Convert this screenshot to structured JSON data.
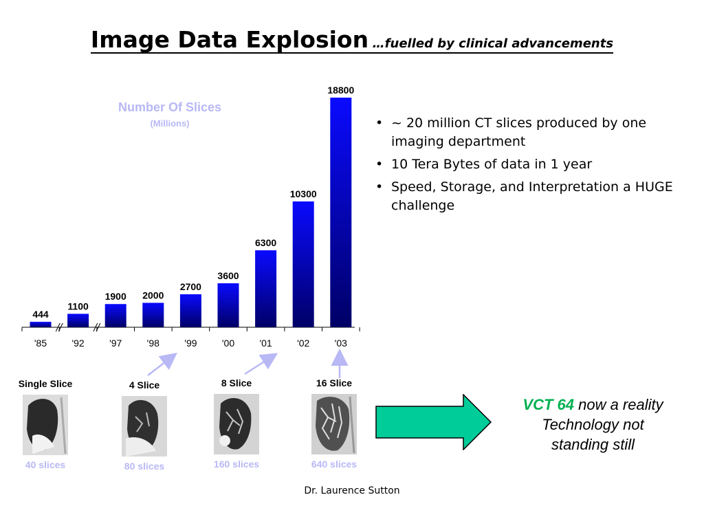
{
  "title": {
    "main": "Image Data Explosion",
    "sub": "…fuelled by clinical advancements"
  },
  "chart_data": {
    "type": "bar",
    "title": "Number Of Slices",
    "subtitle": "(Millions)",
    "categories": [
      "'85",
      "'92",
      "'97",
      "'98",
      "'99",
      "'00",
      "'01",
      "'02",
      "'03"
    ],
    "values": [
      444,
      1100,
      1900,
      2000,
      2700,
      3600,
      6300,
      10300,
      18800
    ],
    "value_labels": [
      "444",
      "1100",
      "1900",
      "2000",
      "2700",
      "3600",
      "6300",
      "10300",
      "18800"
    ],
    "ylim": [
      0,
      18800
    ],
    "axis_breaks_after": [
      0,
      1
    ],
    "grid": false,
    "bar_color_top": "#0a0aff",
    "bar_color_bottom": "#000066",
    "title_color": "#b8b8f5"
  },
  "bullets": [
    "~ 20 million CT slices produced by one imaging department",
    "10 Tera Bytes of data in 1 year",
    "Speed, Storage, and Interpretation a HUGE challenge"
  ],
  "ct_images": [
    {
      "label": "Single Slice",
      "count": "40 slices",
      "icon": "ct-lung-scan-icon"
    },
    {
      "label": "4 Slice",
      "count": "80 slices",
      "icon": "ct-lung-scan-icon"
    },
    {
      "label": "8 Slice",
      "count": "160 slices",
      "icon": "ct-lung-scan-icon"
    },
    {
      "label": "16 Slice",
      "count": "640 slices",
      "icon": "ct-lung-scan-icon"
    }
  ],
  "callout": {
    "highlight": "VCT 64",
    "text1": " now a reality",
    "line2": "Technology not",
    "line3": "standing still"
  },
  "arrow_color": "#00cc99",
  "author": "Dr. Laurence Sutton"
}
